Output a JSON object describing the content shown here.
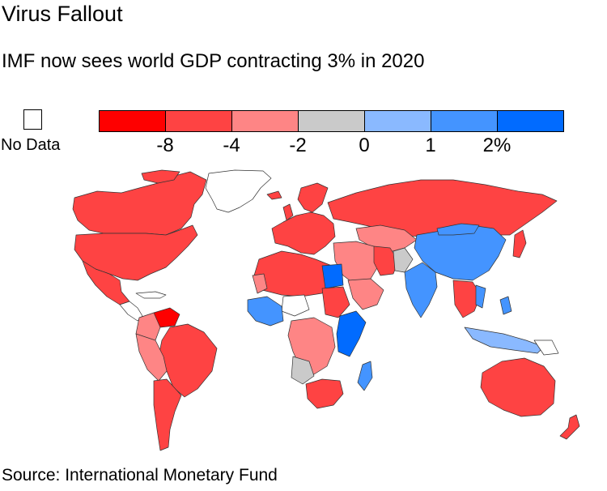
{
  "title": "Virus Fallout",
  "subtitle": "IMF now sees world GDP contracting 3% in 2020",
  "legend": {
    "no_data_label": "No Data",
    "colors": [
      "#fe0000",
      "#fe4343",
      "#fe8585",
      "#cacaca",
      "#8ab9ff",
      "#4494ff",
      "#016bff"
    ],
    "tick_labels": [
      "-8",
      "-4",
      "-2",
      "0",
      "1",
      "2%"
    ]
  },
  "source": "Source: International Monetary Fund"
}
